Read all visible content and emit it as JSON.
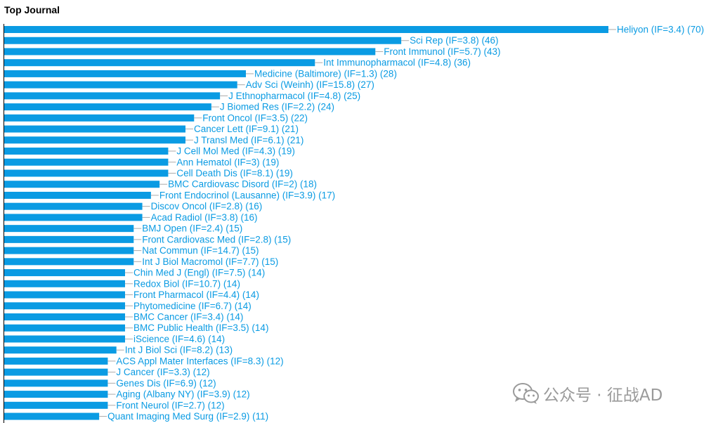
{
  "chart_data": {
    "type": "bar",
    "orientation": "horizontal",
    "title": "Top Journal",
    "bar_color": "#0a9be3",
    "label_color": "#0a9be3",
    "categories": [
      "Heliyon (IF=3.4) (70)",
      "Sci Rep (IF=3.8) (46)",
      "Front Immunol (IF=5.7) (43)",
      "Int Immunopharmacol (IF=4.8) (36)",
      "Medicine (Baltimore) (IF=1.3) (28)",
      "Adv Sci (Weinh) (IF=15.8) (27)",
      "J Ethnopharmacol (IF=4.8) (25)",
      "J Biomed Res (IF=2.2) (24)",
      "Front Oncol (IF=3.5) (22)",
      "Cancer Lett (IF=9.1) (21)",
      "J Transl Med (IF=6.1) (21)",
      "J Cell Mol Med (IF=4.3) (19)",
      "Ann Hematol (IF=3) (19)",
      "Cell Death Dis (IF=8.1) (19)",
      "BMC Cardiovasc Disord (IF=2) (18)",
      "Front Endocrinol (Lausanne) (IF=3.9) (17)",
      "Discov Oncol (IF=2.8) (16)",
      "Acad Radiol (IF=3.8) (16)",
      "BMJ Open (IF=2.4) (15)",
      "Front Cardiovasc Med (IF=2.8) (15)",
      "Nat Commun (IF=14.7) (15)",
      "Int J Biol Macromol (IF=7.7) (15)",
      "Chin Med J (Engl) (IF=7.5) (14)",
      "Redox Biol (IF=10.7) (14)",
      "Front Pharmacol (IF=4.4) (14)",
      "Phytomedicine (IF=6.7) (14)",
      "BMC Cancer (IF=3.4) (14)",
      "BMC Public Health (IF=3.5) (14)",
      "iScience (IF=4.6) (14)",
      "Int J Biol Sci (IF=8.2) (13)",
      "ACS Appl Mater Interfaces (IF=8.3) (12)",
      "J Cancer (IF=3.3) (12)",
      "Genes Dis (IF=6.9) (12)",
      "Aging (Albany NY) (IF=3.9) (12)",
      "Front Neurol (IF=2.7) (12)",
      "Quant Imaging Med Surg (IF=2.9) (11)"
    ],
    "values": [
      70,
      46,
      43,
      36,
      28,
      27,
      25,
      24,
      22,
      21,
      21,
      19,
      19,
      19,
      18,
      17,
      16,
      16,
      15,
      15,
      15,
      15,
      14,
      14,
      14,
      14,
      14,
      14,
      14,
      13,
      12,
      12,
      12,
      12,
      12,
      11
    ],
    "xlim": [
      0,
      70
    ],
    "grid": false,
    "legend": "none"
  },
  "watermark": {
    "text": "公众号 · 征战AD",
    "icon": "wechat-icon"
  }
}
